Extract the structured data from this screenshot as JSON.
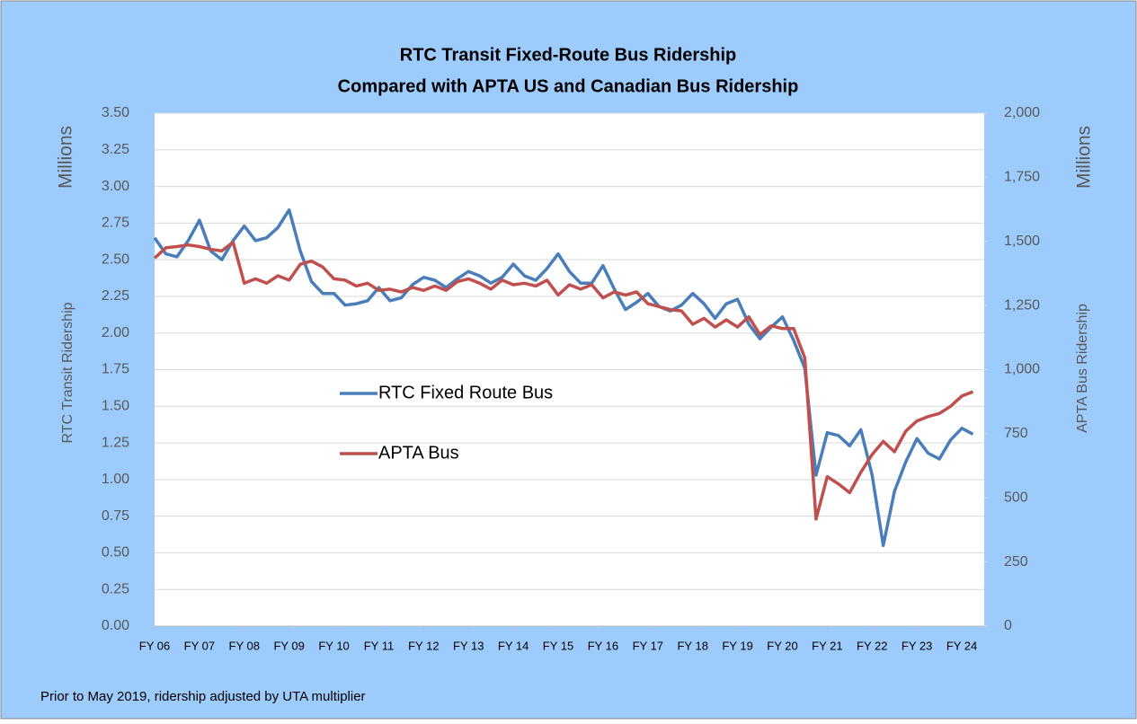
{
  "chart_data": {
    "type": "line",
    "title": "RTC Transit Fixed-Route Bus Ridership",
    "subtitle": "Compared with APTA US and Canadian Bus Ridership",
    "y_unit": "Millions",
    "y_label": "RTC Transit Ridership",
    "y2_unit": "Millions",
    "y2_label": "APTA Bus Ridership",
    "note": "Prior to May 2019, ridership adjusted by UTA multiplier",
    "categories": [
      "FY 06",
      null,
      null,
      null,
      "FY 07",
      null,
      null,
      null,
      "FY 08",
      null,
      null,
      null,
      "FY 09",
      null,
      null,
      null,
      "FY 10",
      null,
      null,
      null,
      "FY 11",
      null,
      null,
      null,
      "FY 12",
      null,
      null,
      null,
      "FY 13",
      null,
      null,
      null,
      "FY 14",
      null,
      null,
      null,
      "FY 15",
      null,
      null,
      null,
      "FY 16",
      null,
      null,
      null,
      "FY 17",
      null,
      null,
      null,
      "FY 18",
      null,
      null,
      null,
      "FY 19",
      null,
      null,
      null,
      "FY 20",
      null,
      null,
      null,
      "FY 21",
      null,
      null,
      null,
      "FY 22",
      null,
      null,
      null,
      "FY 23",
      null,
      null,
      null,
      "FY 24",
      null
    ],
    "series": [
      {
        "name": "RTC Fixed Route Bus",
        "color": "#4a7ebb",
        "values": [
          2.65,
          2.54,
          2.52,
          2.63,
          2.77,
          2.56,
          2.5,
          2.63,
          2.73,
          2.63,
          2.65,
          2.72,
          2.84,
          2.56,
          2.35,
          2.27,
          2.27,
          2.19,
          2.2,
          2.22,
          2.31,
          2.22,
          2.24,
          2.33,
          2.38,
          2.36,
          2.31,
          2.37,
          2.42,
          2.39,
          2.34,
          2.38,
          2.47,
          2.39,
          2.36,
          2.44,
          2.54,
          2.42,
          2.34,
          2.34,
          2.46,
          2.3,
          2.16,
          2.21,
          2.27,
          2.18,
          2.15,
          2.19,
          2.27,
          2.2,
          2.1,
          2.2,
          2.23,
          2.06,
          1.96,
          2.04,
          2.11,
          1.95,
          1.76,
          1.03,
          1.32,
          1.3,
          1.23,
          1.34,
          1.03,
          0.55,
          0.92,
          1.12,
          1.28,
          1.18,
          1.14,
          1.27,
          1.35,
          1.31
        ]
      },
      {
        "name": "APTA Bus",
        "color": "#c0504d",
        "axis": "y2",
        "values": [
          1435,
          1475,
          1480,
          1486,
          1480,
          1469,
          1463,
          1497,
          1337,
          1354,
          1337,
          1366,
          1349,
          1411,
          1423,
          1400,
          1354,
          1349,
          1326,
          1337,
          1309,
          1314,
          1303,
          1320,
          1309,
          1326,
          1309,
          1343,
          1354,
          1337,
          1314,
          1349,
          1331,
          1337,
          1326,
          1349,
          1291,
          1331,
          1314,
          1331,
          1280,
          1303,
          1291,
          1303,
          1257,
          1246,
          1234,
          1229,
          1177,
          1200,
          1166,
          1194,
          1166,
          1206,
          1137,
          1171,
          1160,
          1160,
          1046,
          417,
          583,
          554,
          520,
          600,
          669,
          720,
          680,
          760,
          800,
          817,
          829,
          857,
          897,
          914
        ]
      }
    ],
    "ylim": [
      0,
      3.5
    ],
    "yticks": [
      {
        "value": 0,
        "label": "0.00"
      },
      {
        "value": 0.25,
        "label": "0.25"
      },
      {
        "value": 0.5,
        "label": "0.50"
      },
      {
        "value": 0.75,
        "label": "0.75"
      },
      {
        "value": 1,
        "label": "1.00"
      },
      {
        "value": 1.25,
        "label": "1.25"
      },
      {
        "value": 1.5,
        "label": "1.50"
      },
      {
        "value": 1.75,
        "label": "1.75"
      },
      {
        "value": 2,
        "label": "2.00"
      },
      {
        "value": 2.25,
        "label": "2.25"
      },
      {
        "value": 2.5,
        "label": "2.50"
      },
      {
        "value": 2.75,
        "label": "2.75"
      },
      {
        "value": 3,
        "label": "3.00"
      },
      {
        "value": 3.25,
        "label": "3.25"
      },
      {
        "value": 3.5,
        "label": "3.50"
      }
    ],
    "y2lim": [
      0,
      2000
    ],
    "y2ticks": [
      0,
      250,
      500,
      750,
      {
        "value": 1000,
        "label": "1,000"
      },
      {
        "value": 1250,
        "label": "1,250"
      },
      {
        "value": 1500,
        "label": "1,500"
      },
      {
        "value": 1750,
        "label": "1,750"
      },
      {
        "value": 2000,
        "label": "2,000"
      }
    ],
    "grid": true
  }
}
